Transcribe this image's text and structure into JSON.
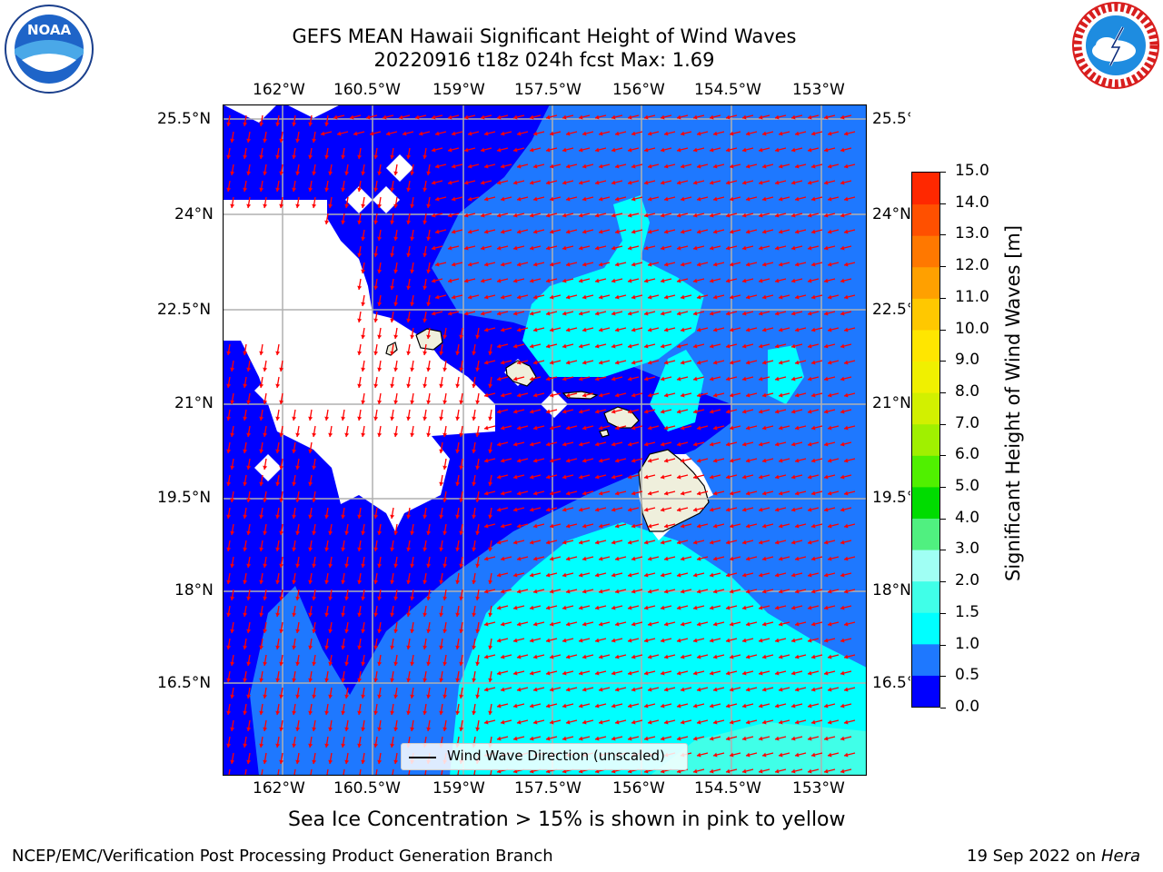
{
  "title": {
    "line1": "GEFS MEAN Hawaii Significant Height of Wind Waves",
    "line2": "20220916 t18z 024h fcst   Max: 1.69"
  },
  "logos": {
    "left_icon": "noaa-logo",
    "left_text": "NOAA",
    "right_icon": "national-weather-service-logo",
    "right_text": "NATIONAL WEATHER SERVICE"
  },
  "map": {
    "lon_ticks": [
      "162°W",
      "160.5°W",
      "159°W",
      "157.5°W",
      "156°W",
      "154.5°W",
      "153°W"
    ],
    "lat_ticks": [
      "25.5°N",
      "24°N",
      "22.5°N",
      "21°N",
      "19.5°N",
      "18°N",
      "16.5°N"
    ],
    "legend_label": "Wind Wave Direction (unscaled)",
    "arrow_color": "#ff0000",
    "land_color": "#efefdc"
  },
  "colorbar": {
    "label": "Significant Height of Wind Waves [m]",
    "ticks": [
      "0.0",
      "0.5",
      "1.0",
      "1.5",
      "2.0",
      "3.0",
      "4.0",
      "5.0",
      "6.0",
      "7.0",
      "8.0",
      "9.0",
      "10.0",
      "11.0",
      "12.0",
      "13.0",
      "14.0",
      "15.0"
    ],
    "colors": [
      "#0000ff",
      "#1e78ff",
      "#00ffff",
      "#40ffe8",
      "#a0fff4",
      "#50f080",
      "#00dc00",
      "#50f000",
      "#a0f000",
      "#d2f000",
      "#f0f000",
      "#ffe600",
      "#ffc800",
      "#ffa000",
      "#ff7800",
      "#ff5000",
      "#ff2800"
    ]
  },
  "footer": {
    "subtitle": "Sea Ice Concentration > 15% is shown in pink to yellow",
    "left": "NCEP/EMC/Verification Post Processing Product Generation Branch",
    "right_prefix": "19 Sep 2022 on ",
    "right_host": "Hera"
  }
}
